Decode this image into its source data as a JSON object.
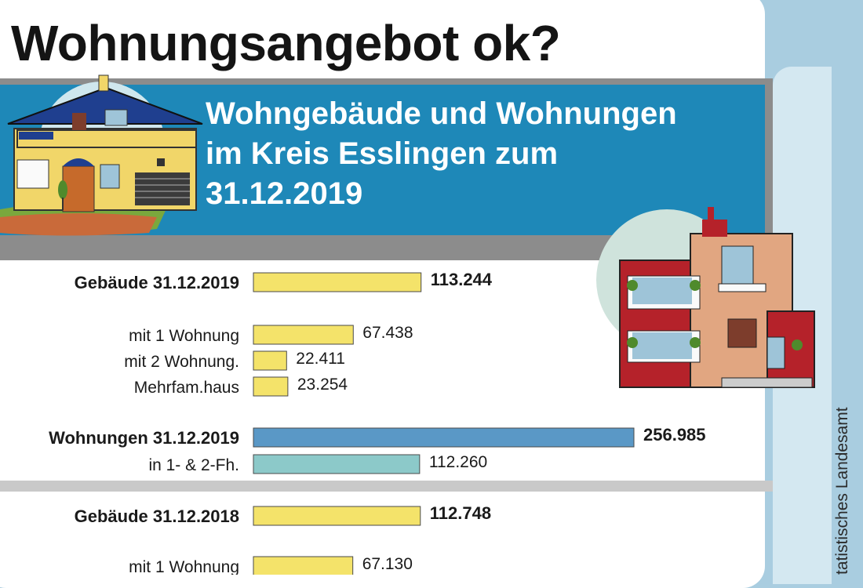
{
  "header": {
    "title": "Wohnungsangebot ok?",
    "subtitle_lines": [
      "Wohngebäude und Wohnungen",
      "im Kreis Esslingen zum",
      "31.12.2019"
    ]
  },
  "source": "tatistisches Landesamt",
  "colors": {
    "background": "#a9cde0",
    "banner": "#1e88b8",
    "bar_gebaeude": "#f4e36a",
    "bar_wohnungen": "#5a98c6",
    "bar_wohnungen_12fh": "#8cc9c9"
  },
  "chart_data": {
    "type": "bar",
    "orientation": "horizontal",
    "xlim": [
      0,
      260000
    ],
    "categories": [
      "Gebäude 31.12.2019",
      "mit 1 Wohnung",
      "mit 2 Wohnung.",
      "Mehrfam.haus",
      "Wohnungen 31.12.2019",
      "in 1- & 2-Fh.",
      "Gebäude 31.12.2018",
      "mit 1 Wohnung"
    ],
    "values": [
      113244,
      67438,
      22411,
      23254,
      256985,
      112260,
      112748,
      67130
    ],
    "value_labels": [
      "113.244",
      "67.438",
      "22.411",
      "23.254",
      "256.985",
      "112.260",
      "112.748",
      "67.130"
    ],
    "bold": [
      true,
      false,
      false,
      false,
      true,
      false,
      true,
      false
    ],
    "bar_colors": [
      "#f4e36a",
      "#f4e36a",
      "#f4e36a",
      "#f4e36a",
      "#5a98c6",
      "#8cc9c9",
      "#f4e36a",
      "#f4e36a"
    ]
  }
}
